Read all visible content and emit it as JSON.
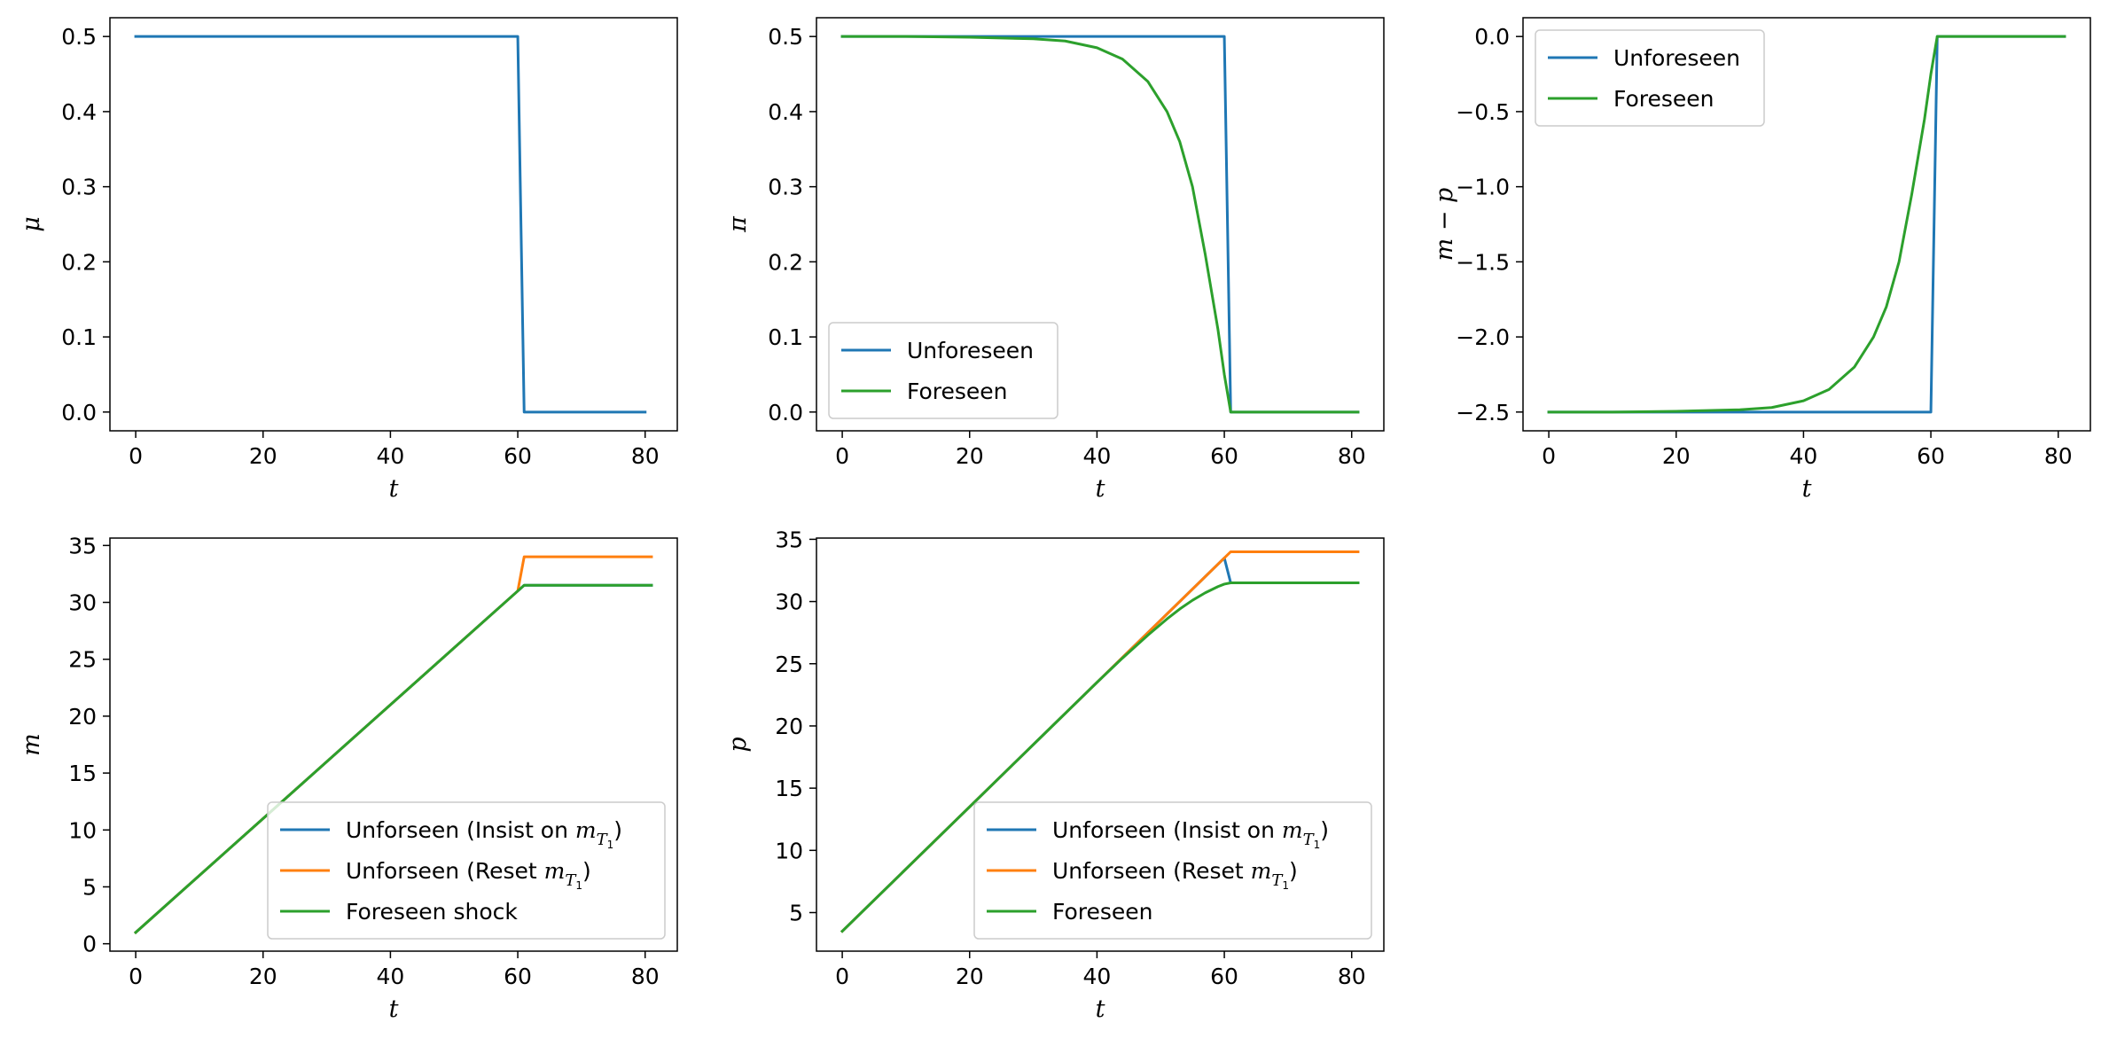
{
  "chart_data": [
    {
      "type": "line",
      "ylabel": "μ",
      "xlabel": "t",
      "xlim": [
        -4.05,
        85.05
      ],
      "ylim": [
        -0.025,
        0.525
      ],
      "xticks": [
        0,
        20,
        40,
        60,
        80
      ],
      "yticks": [
        0.0,
        0.1,
        0.2,
        0.3,
        0.4,
        0.5
      ],
      "ytick_labels": [
        "0.0",
        "0.1",
        "0.2",
        "0.3",
        "0.4",
        "0.5"
      ],
      "legend": null,
      "series": [
        {
          "color": "#1f77b4",
          "x": [
            0,
            60,
            61,
            80
          ],
          "y": [
            0.5,
            0.5,
            0.0,
            0.0
          ]
        }
      ]
    },
    {
      "type": "line",
      "ylabel": "π",
      "xlabel": "t",
      "xlim": [
        -4.05,
        85.05
      ],
      "ylim": [
        -0.025,
        0.525
      ],
      "xticks": [
        0,
        20,
        40,
        60,
        80
      ],
      "yticks": [
        0.0,
        0.1,
        0.2,
        0.3,
        0.4,
        0.5
      ],
      "ytick_labels": [
        "0.0",
        "0.1",
        "0.2",
        "0.3",
        "0.4",
        "0.5"
      ],
      "legend": "lower-left",
      "series": [
        {
          "name": "Unforeseen",
          "color": "#1f77b4",
          "x": [
            0,
            60,
            61,
            81
          ],
          "y": [
            0.5,
            0.5,
            0.0,
            0.0
          ]
        },
        {
          "name": "Foreseen",
          "color": "#2ca02c",
          "x": [
            0,
            10,
            20,
            30,
            35,
            40,
            44,
            48,
            51,
            53,
            55,
            57,
            58,
            59,
            60,
            61,
            81
          ],
          "y": [
            0.5,
            0.5,
            0.499,
            0.497,
            0.494,
            0.485,
            0.47,
            0.44,
            0.4,
            0.36,
            0.3,
            0.21,
            0.16,
            0.11,
            0.05,
            0.0,
            0.0
          ]
        }
      ]
    },
    {
      "type": "line",
      "ylabel": "m − p",
      "xlabel": "t",
      "xlim": [
        -4.05,
        85.05
      ],
      "ylim": [
        -2.625,
        0.125
      ],
      "xticks": [
        0,
        20,
        40,
        60,
        80
      ],
      "yticks": [
        -2.5,
        -2.0,
        -1.5,
        -1.0,
        -0.5,
        0.0
      ],
      "ytick_labels": [
        "−2.5",
        "−2.0",
        "−1.5",
        "−1.0",
        "−0.5",
        "0.0"
      ],
      "legend": "upper-left",
      "series": [
        {
          "name": "Unforeseen",
          "color": "#1f77b4",
          "x": [
            0,
            60,
            61,
            81
          ],
          "y": [
            -2.5,
            -2.5,
            0.0,
            0.0
          ]
        },
        {
          "name": "Foreseen",
          "color": "#2ca02c",
          "x": [
            0,
            10,
            20,
            30,
            35,
            40,
            44,
            48,
            51,
            53,
            55,
            57,
            58,
            59,
            60,
            61,
            81
          ],
          "y": [
            -2.5,
            -2.5,
            -2.495,
            -2.485,
            -2.47,
            -2.425,
            -2.35,
            -2.2,
            -2.0,
            -1.8,
            -1.5,
            -1.05,
            -0.8,
            -0.55,
            -0.25,
            0.0,
            0.0
          ]
        }
      ]
    },
    {
      "type": "line",
      "ylabel": "m",
      "xlabel": "t",
      "xlim": [
        -4.05,
        85.05
      ],
      "ylim": [
        -0.65,
        35.65
      ],
      "xticks": [
        0,
        20,
        40,
        60,
        80
      ],
      "yticks": [
        0,
        5,
        10,
        15,
        20,
        25,
        30,
        35
      ],
      "ytick_labels": [
        "0",
        "5",
        "10",
        "15",
        "20",
        "25",
        "30",
        "35"
      ],
      "legend": "lower-right",
      "series": [
        {
          "name": "Unforseen (Insist on m_T1)",
          "color": "#1f77b4",
          "x": [
            0,
            60,
            61,
            81
          ],
          "y": [
            1.0,
            31.0,
            31.5,
            31.5
          ]
        },
        {
          "name": "Unforseen (Reset m_T1)",
          "color": "#ff7f0e",
          "x": [
            0,
            60,
            61,
            81
          ],
          "y": [
            1.0,
            31.0,
            34.0,
            34.0
          ]
        },
        {
          "name": "Foreseen shock",
          "color": "#2ca02c",
          "x": [
            0,
            60,
            61,
            81
          ],
          "y": [
            1.0,
            31.0,
            31.5,
            31.5
          ]
        }
      ]
    },
    {
      "type": "line",
      "ylabel": "p",
      "xlabel": "t",
      "xlim": [
        -4.05,
        85.05
      ],
      "ylim": [
        1.9,
        35.1
      ],
      "xticks": [
        0,
        20,
        40,
        60,
        80
      ],
      "yticks": [
        5,
        10,
        15,
        20,
        25,
        30,
        35
      ],
      "ytick_labels": [
        "5",
        "10",
        "15",
        "20",
        "25",
        "30",
        "35"
      ],
      "legend": "lower-right",
      "series": [
        {
          "name": "Unforseen (Insist on m_T1)",
          "color": "#1f77b4",
          "x": [
            0,
            60,
            61,
            81
          ],
          "y": [
            3.5,
            33.5,
            31.5,
            31.5
          ]
        },
        {
          "name": "Unforseen (Reset m_T1)",
          "color": "#ff7f0e",
          "x": [
            0,
            60,
            61,
            81
          ],
          "y": [
            3.5,
            33.5,
            34.0,
            34.0
          ]
        },
        {
          "name": "Foreseen",
          "color": "#2ca02c",
          "x": [
            0,
            10,
            20,
            30,
            40,
            44,
            48,
            51,
            53,
            55,
            57,
            58,
            59,
            60,
            61,
            81
          ],
          "y": [
            3.5,
            8.5,
            13.5,
            18.5,
            23.5,
            25.45,
            27.3,
            28.6,
            29.4,
            30.1,
            30.7,
            30.95,
            31.2,
            31.4,
            31.5,
            31.5
          ]
        }
      ]
    }
  ]
}
